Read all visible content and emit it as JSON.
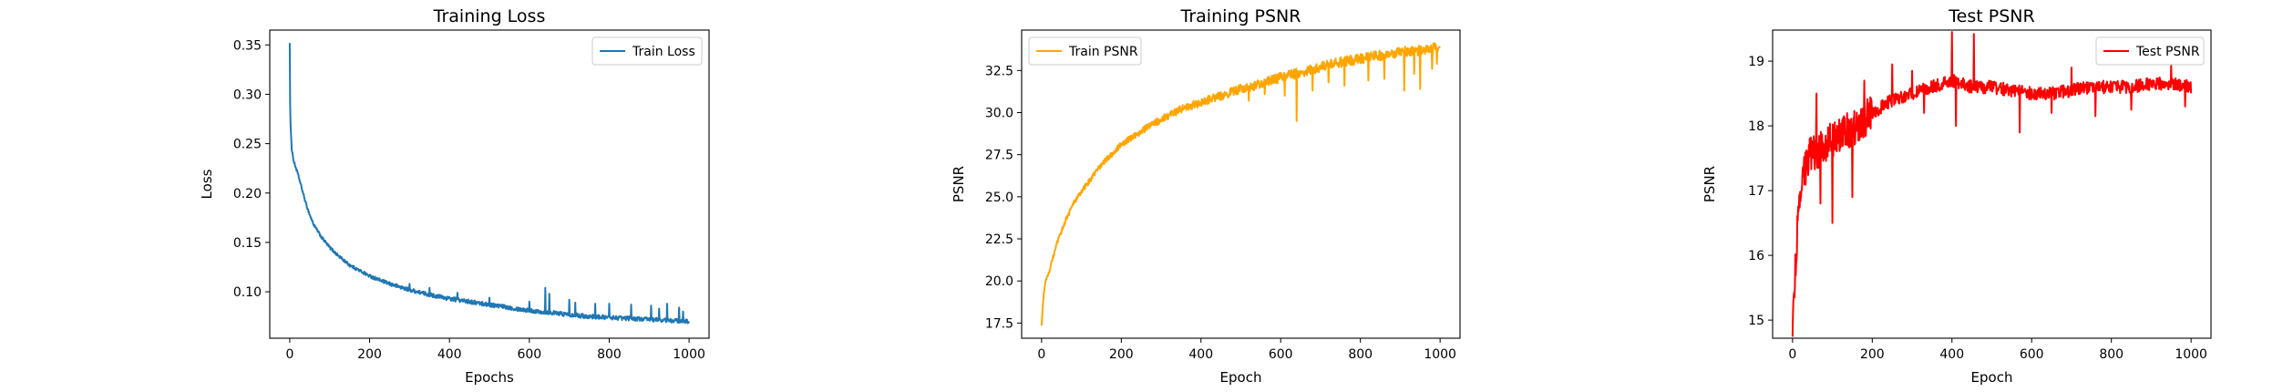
{
  "chart_data": [
    {
      "type": "line",
      "title": "Training Loss",
      "xlabel": "Epochs",
      "ylabel": "Loss",
      "xlim": [
        -50,
        1050
      ],
      "ylim": [
        0.053,
        0.365
      ],
      "xticks": [
        0,
        200,
        400,
        600,
        800,
        1000
      ],
      "yticks": [
        0.1,
        0.15,
        0.2,
        0.25,
        0.3,
        0.35
      ],
      "ytick_labels": [
        "0.10",
        "0.15",
        "0.20",
        "0.25",
        "0.30",
        "0.35"
      ],
      "legend": "upper right",
      "grid": false,
      "series": [
        {
          "name": "Train Loss",
          "color": "#1f77b4",
          "x": [
            0,
            1,
            2,
            5,
            10,
            20,
            30,
            40,
            50,
            60,
            80,
            100,
            120,
            150,
            200,
            250,
            300,
            350,
            400,
            450,
            500,
            550,
            600,
            650,
            700,
            750,
            800,
            850,
            900,
            950,
            1000
          ],
          "y": [
            0.352,
            0.29,
            0.27,
            0.245,
            0.232,
            0.22,
            0.205,
            0.19,
            0.178,
            0.168,
            0.155,
            0.145,
            0.137,
            0.127,
            0.116,
            0.108,
            0.102,
            0.097,
            0.093,
            0.09,
            0.087,
            0.084,
            0.081,
            0.079,
            0.077,
            0.075,
            0.074,
            0.073,
            0.072,
            0.071,
            0.07
          ],
          "spikes": [
            [
              300,
              0.108
            ],
            [
              350,
              0.104
            ],
            [
              420,
              0.099
            ],
            [
              500,
              0.094
            ],
            [
              600,
              0.09
            ],
            [
              640,
              0.104
            ],
            [
              650,
              0.098
            ],
            [
              700,
              0.092
            ],
            [
              715,
              0.089
            ],
            [
              765,
              0.088
            ],
            [
              800,
              0.088
            ],
            [
              855,
              0.087
            ],
            [
              905,
              0.086
            ],
            [
              925,
              0.083
            ],
            [
              945,
              0.088
            ],
            [
              975,
              0.084
            ],
            [
              985,
              0.08
            ]
          ]
        }
      ]
    },
    {
      "type": "line",
      "title": "Training PSNR",
      "xlabel": "Epoch",
      "ylabel": "PSNR",
      "xlim": [
        -50,
        1050
      ],
      "ylim": [
        16.6,
        34.9
      ],
      "xticks": [
        0,
        200,
        400,
        600,
        800,
        1000
      ],
      "yticks": [
        17.5,
        20.0,
        22.5,
        25.0,
        27.5,
        30.0,
        32.5
      ],
      "ytick_labels": [
        "17.5",
        "20.0",
        "22.5",
        "25.0",
        "27.5",
        "30.0",
        "32.5"
      ],
      "legend": "upper left",
      "grid": false,
      "series": [
        {
          "name": "Train PSNR",
          "color": "#ffa500",
          "x": [
            0,
            3,
            6,
            10,
            20,
            30,
            40,
            60,
            80,
            100,
            150,
            200,
            250,
            300,
            350,
            400,
            450,
            500,
            550,
            600,
            650,
            700,
            750,
            800,
            850,
            900,
            950,
            1000
          ],
          "y": [
            17.3,
            18.5,
            19.3,
            20.0,
            20.6,
            21.5,
            22.3,
            23.6,
            24.6,
            25.3,
            26.9,
            28.1,
            28.9,
            29.6,
            30.2,
            30.6,
            31.0,
            31.4,
            31.7,
            32.1,
            32.4,
            32.7,
            33.0,
            33.2,
            33.4,
            33.6,
            33.7,
            33.9
          ],
          "spikes": [
            [
              520,
              30.7
            ],
            [
              560,
              31.1
            ],
            [
              610,
              31.0
            ],
            [
              640,
              29.5
            ],
            [
              680,
              31.3
            ],
            [
              720,
              31.8
            ],
            [
              760,
              31.6
            ],
            [
              820,
              31.9
            ],
            [
              860,
              32.0
            ],
            [
              910,
              31.3
            ],
            [
              935,
              32.3
            ],
            [
              950,
              31.4
            ],
            [
              980,
              32.6
            ],
            [
              992,
              32.9
            ]
          ]
        }
      ]
    },
    {
      "type": "line",
      "title": "Test PSNR",
      "xlabel": "Epoch",
      "ylabel": "PSNR",
      "xlim": [
        -50,
        1050
      ],
      "ylim": [
        14.72,
        19.48
      ],
      "xticks": [
        0,
        200,
        400,
        600,
        800,
        1000
      ],
      "yticks": [
        15,
        16,
        17,
        18,
        19
      ],
      "ytick_labels": [
        "15",
        "16",
        "17",
        "18",
        "19"
      ],
      "legend": "upper right",
      "grid": false,
      "series": [
        {
          "name": "Test PSNR",
          "color": "#ff0000",
          "x": [
            0,
            5,
            10,
            20,
            30,
            40,
            50,
            60,
            80,
            100,
            130,
            160,
            200,
            250,
            300,
            350,
            400,
            450,
            500,
            550,
            600,
            650,
            700,
            750,
            800,
            850,
            900,
            950,
            1000
          ],
          "y": [
            14.9,
            15.5,
            16.2,
            16.9,
            17.3,
            17.5,
            17.6,
            17.6,
            17.7,
            17.8,
            17.9,
            18.0,
            18.2,
            18.4,
            18.5,
            18.6,
            18.7,
            18.6,
            18.6,
            18.55,
            18.5,
            18.5,
            18.55,
            18.6,
            18.6,
            18.6,
            18.65,
            18.65,
            18.6
          ],
          "spikes": [
            [
              60,
              18.5
            ],
            [
              70,
              16.8
            ],
            [
              100,
              16.5
            ],
            [
              150,
              16.9
            ],
            [
              180,
              18.7
            ],
            [
              250,
              18.95
            ],
            [
              300,
              18.85
            ],
            [
              330,
              18.2
            ],
            [
              400,
              19.45
            ],
            [
              410,
              18.0
            ],
            [
              455,
              19.42
            ],
            [
              570,
              17.9
            ],
            [
              650,
              18.2
            ],
            [
              700,
              18.9
            ],
            [
              760,
              18.15
            ],
            [
              850,
              18.25
            ],
            [
              950,
              18.95
            ],
            [
              985,
              18.3
            ]
          ]
        }
      ]
    }
  ]
}
